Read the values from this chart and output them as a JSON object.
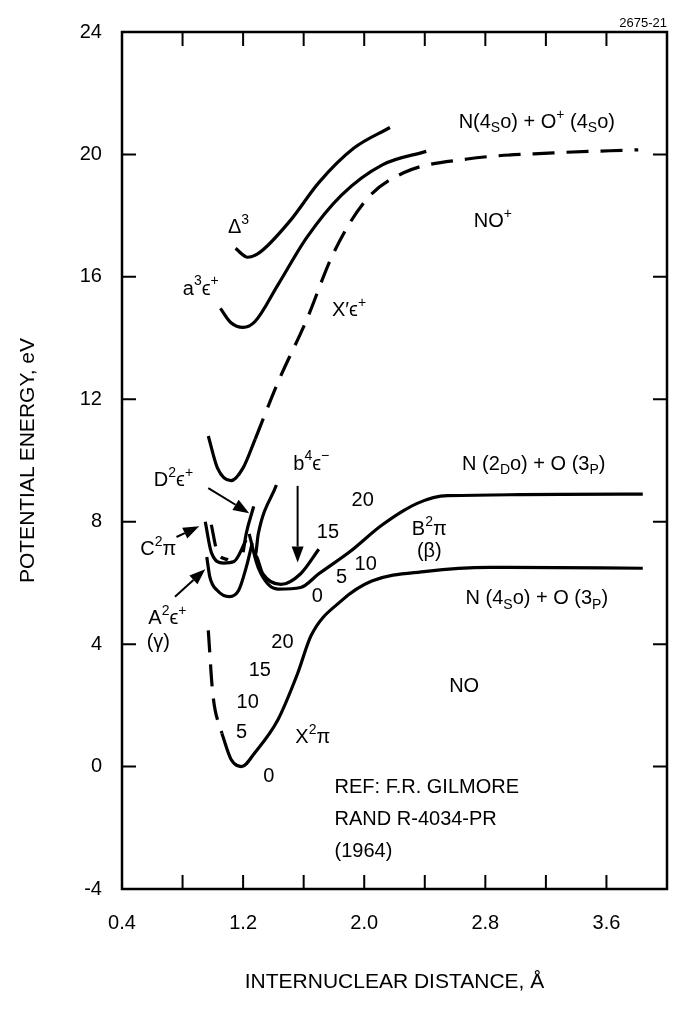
{
  "chart_data": {
    "type": "line",
    "xlabel": "INTERNUCLEAR DISTANCE, Å",
    "ylabel": "POTENTIAL ENERGY, eV",
    "xlim": [
      0.4,
      4.0
    ],
    "ylim": [
      -4,
      24
    ],
    "xticks": [
      0.4,
      {
        "value": 0.8,
        "label": null
      },
      1.2,
      {
        "value": 1.6,
        "label": null
      },
      {
        "value": 2,
        "label": "2.0"
      },
      {
        "value": 2.4,
        "label": null
      },
      2.8,
      {
        "value": 3.2,
        "label": null
      },
      3.6
    ],
    "yticks": [
      -4,
      0,
      4,
      8,
      12,
      16,
      20,
      24
    ],
    "grid": false,
    "marker": "none",
    "series": [
      {
        "color": "#000000",
        "line_style": "dashed",
        "x": [
          0.97,
          1.0,
          1.06
        ],
        "values": [
          4.45,
          2.37,
          1.08
        ]
      },
      {
        "color": "#000000",
        "line_style": "solid",
        "x": [
          1.06,
          1.12,
          1.19,
          1.28,
          1.43,
          1.56,
          1.65,
          1.85,
          2.05,
          2.41,
          2.83,
          3.84
        ],
        "values": [
          1.08,
          0.24,
          0,
          0.47,
          1.53,
          3.04,
          4.29,
          5.42,
          6.06,
          6.38,
          6.51,
          6.48
        ]
      },
      {
        "color": "#000000",
        "line_style": "solid",
        "x": [
          1.24,
          1.3,
          1.43,
          1.58,
          1.7,
          1.9,
          2.12,
          2.35,
          2.55,
          3.84
        ],
        "values": [
          7.6,
          6.5,
          5.8,
          5.85,
          6.3,
          7.0,
          7.9,
          8.6,
          8.85,
          8.9
        ]
      },
      {
        "color": "#000000",
        "line_style": "solid",
        "x": [
          1.42,
          1.3,
          1.28,
          1.33,
          1.45,
          1.58,
          1.7
        ],
        "values": [
          9.2,
          7.6,
          6.9,
          6.3,
          5.95,
          6.3,
          7.1
        ]
      },
      {
        "color": "#000000",
        "line_style": "solid",
        "x": [
          1.27,
          1.22,
          1.2
        ],
        "values": [
          8.5,
          7.6,
          7.0
        ]
      },
      {
        "color": "#000000",
        "line_style": "solid",
        "x": [
          0.95,
          0.99,
          1.07,
          1.14,
          1.22
        ],
        "values": [
          8.0,
          7.0,
          6.65,
          6.7,
          7.4
        ]
      },
      {
        "color": "#000000",
        "line_style": "dashed",
        "x": [
          0.99,
          1.03,
          1.1
        ],
        "values": [
          7.9,
          7.0,
          6.75
        ]
      },
      {
        "color": "#000000",
        "line_style": "solid",
        "x": [
          0.96,
          0.98,
          1.03,
          1.11,
          1.17,
          1.22,
          1.26
        ],
        "values": [
          6.85,
          6.2,
          5.75,
          5.55,
          5.75,
          6.5,
          7.3
        ]
      },
      {
        "color": "#000000",
        "line_style": "solid",
        "x": [
          0.97,
          1.03,
          1.12,
          1.2,
          1.28
        ],
        "values": [
          10.8,
          9.76,
          9.34,
          9.76,
          10.7
        ]
      },
      {
        "color": "#000000",
        "line_style": "dashed",
        "x": [
          1.28,
          1.43,
          1.62,
          1.79,
          2.01,
          2.26,
          2.68,
          3.25,
          3.81
        ],
        "values": [
          10.7,
          12.55,
          14.6,
          16.7,
          18.5,
          19.4,
          19.85,
          20.05,
          20.15
        ]
      },
      {
        "color": "#000000",
        "line_style": "solid",
        "x": [
          1.05,
          1.12,
          1.2,
          1.28,
          1.43,
          1.62,
          1.85,
          2.12,
          2.41
        ],
        "values": [
          14.97,
          14.5,
          14.35,
          14.55,
          15.74,
          17.28,
          18.67,
          19.66,
          20.1
        ]
      },
      {
        "color": "#000000",
        "line_style": "solid",
        "x": [
          1.15,
          1.23,
          1.31,
          1.51,
          1.7,
          1.93,
          2.17
        ],
        "values": [
          16.93,
          16.64,
          16.8,
          17.83,
          19.08,
          20.2,
          20.88
        ]
      }
    ],
    "annotations": [
      "2675-21",
      "REF: F.R. GILMORE\nRAND R-4034-PR\n(1964)",
      "N(4$_{S}$o) + O$^{+}$ (4$_{S}$o)",
      "NO$^{+}$",
      "Δ$^{3}$",
      "a$^{3}$ϵ$^{+}$",
      "X′ϵ$^{+}$",
      "N (2$_{D}$o) + O (3$_{P}$)",
      "D$^{2}$ϵ$^{+}$",
      "b$^{4}$ϵ$^{−}$",
      "C$^{2}$π",
      "A$^{2}$ϵ$^{+}$",
      "(γ)",
      "B$^{2}$π",
      "(β)",
      "N (4$_{S}$o) + O (3$_{P}$)",
      "20",
      "15",
      "10",
      "5",
      "0",
      "20",
      "15",
      "10",
      "5",
      "0",
      "X$^{2}$π",
      "NO"
    ]
  }
}
